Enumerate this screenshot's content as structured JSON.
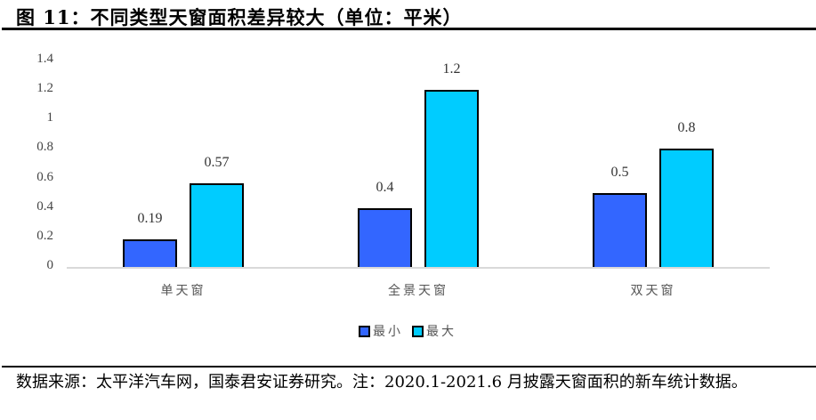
{
  "title": "图 11：不同类型天窗面积差异较大（单位：平米）",
  "source": "数据来源：太平洋汽车网，国泰君安证券研究。注：2020.1-2021.6 月披露天窗面积的新车统计数据。",
  "legend": [
    {
      "label": "最小",
      "color": "#3366FF"
    },
    {
      "label": "最大",
      "color": "#00CCFF"
    }
  ],
  "yticks": [
    "1.4",
    "1.2",
    "1",
    "0.8",
    "0.6",
    "0.4",
    "0.2",
    "0"
  ],
  "chart_data": {
    "type": "bar",
    "title": "不同类型天窗面积差异较大（单位：平米）",
    "categories": [
      "单天窗",
      "全景天窗",
      "双天窗"
    ],
    "series": [
      {
        "name": "最小",
        "values": [
          0.19,
          0.4,
          0.5
        ],
        "color": "#3366FF"
      },
      {
        "name": "最大",
        "values": [
          0.57,
          1.2,
          0.8
        ],
        "color": "#00CCFF"
      }
    ],
    "xlabel": "",
    "ylabel": "",
    "ylim": [
      0,
      1.4
    ],
    "yticks": [
      0,
      0.2,
      0.4,
      0.6,
      0.8,
      1,
      1.2,
      1.4
    ],
    "grid": false,
    "legend_position": "bottom",
    "data_labels": true
  }
}
